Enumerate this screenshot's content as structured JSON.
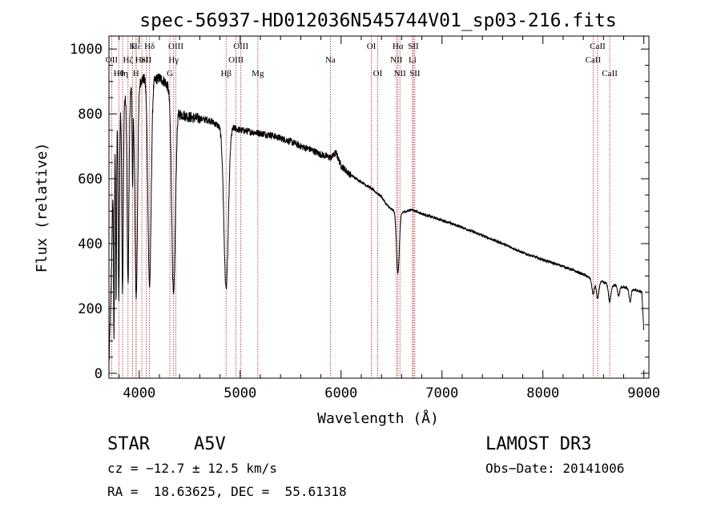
{
  "chart_data": {
    "type": "line",
    "title": "spec-56937-HD012036N545744V01_sp03-216.fits",
    "xlabel": "Wavelength (Å)",
    "ylabel": "Flux (relative)",
    "xlim": [
      3700,
      9050
    ],
    "ylim": [
      -15,
      1040
    ],
    "xticks": [
      4000,
      5000,
      6000,
      7000,
      8000,
      9000
    ],
    "yticks": [
      0,
      200,
      400,
      600,
      800,
      1000
    ],
    "grid": false,
    "line_color": "#000000",
    "marker_color": "#b22222",
    "lines": [
      {
        "name": "OII",
        "x": 3727,
        "row": 2
      },
      {
        "name": "Hθ",
        "x": 3798,
        "row": 3
      },
      {
        "name": "Hη",
        "x": 3835,
        "row": 3
      },
      {
        "name": "Hζ",
        "x": 3889,
        "row": 2
      },
      {
        "name": "Hε",
        "x": 3970,
        "row": 1
      },
      {
        "name": "K",
        "x": 3934,
        "row": 1
      },
      {
        "name": "H",
        "x": 3968,
        "row": 3
      },
      {
        "name": "HeI",
        "x": 4026,
        "row": 2
      },
      {
        "name": "SII",
        "x": 4070,
        "row": 2
      },
      {
        "name": "Hδ",
        "x": 4102,
        "row": 1
      },
      {
        "name": "G",
        "x": 4304,
        "row": 3
      },
      {
        "name": "Hγ",
        "x": 4341,
        "row": 2
      },
      {
        "name": "OIII",
        "x": 4363,
        "row": 1
      },
      {
        "name": "Hβ",
        "x": 4861,
        "row": 3
      },
      {
        "name": "OIII",
        "x": 4959,
        "row": 2
      },
      {
        "name": "OIII",
        "x": 5007,
        "row": 1
      },
      {
        "name": "Mg",
        "x": 5175,
        "row": 3
      },
      {
        "name": "Na",
        "x": 5894,
        "row": 2
      },
      {
        "name": "OI",
        "x": 6300,
        "row": 1
      },
      {
        "name": "OI",
        "x": 6363,
        "row": 3
      },
      {
        "name": "NII",
        "x": 6548,
        "row": 2
      },
      {
        "name": "Hα",
        "x": 6563,
        "row": 1
      },
      {
        "name": "NII",
        "x": 6583,
        "row": 3
      },
      {
        "name": "Li",
        "x": 6708,
        "row": 2
      },
      {
        "name": "SII",
        "x": 6716,
        "row": 1
      },
      {
        "name": "SII",
        "x": 6731,
        "row": 3
      },
      {
        "name": "CaII",
        "x": 8498,
        "row": 2
      },
      {
        "name": "CaII",
        "x": 8542,
        "row": 1
      },
      {
        "name": "CaII",
        "x": 8662,
        "row": 3
      }
    ],
    "continuum": [
      [
        3700,
        30
      ],
      [
        3720,
        250
      ],
      [
        3740,
        560
      ],
      [
        3760,
        700
      ],
      [
        3780,
        760
      ],
      [
        3800,
        800
      ],
      [
        3850,
        840
      ],
      [
        3900,
        870
      ],
      [
        3950,
        880
      ],
      [
        4000,
        900
      ],
      [
        4050,
        910
      ],
      [
        4100,
        910
      ],
      [
        4150,
        905
      ],
      [
        4200,
        910
      ],
      [
        4250,
        900
      ],
      [
        4300,
        880
      ],
      [
        4350,
        850
      ],
      [
        4400,
        800
      ],
      [
        4500,
        790
      ],
      [
        4600,
        785
      ],
      [
        4700,
        780
      ],
      [
        4800,
        760
      ],
      [
        4850,
        740
      ],
      [
        4900,
        760
      ],
      [
        5000,
        750
      ],
      [
        5100,
        745
      ],
      [
        5200,
        740
      ],
      [
        5300,
        735
      ],
      [
        5400,
        725
      ],
      [
        5500,
        715
      ],
      [
        5600,
        700
      ],
      [
        5700,
        690
      ],
      [
        5800,
        675
      ],
      [
        5900,
        665
      ],
      [
        5950,
        680
      ],
      [
        6000,
        640
      ],
      [
        6100,
        610
      ],
      [
        6200,
        590
      ],
      [
        6300,
        570
      ],
      [
        6400,
        545
      ],
      [
        6450,
        520
      ],
      [
        6500,
        505
      ],
      [
        6600,
        495
      ],
      [
        6700,
        505
      ],
      [
        6800,
        492
      ],
      [
        7000,
        472
      ],
      [
        7200,
        450
      ],
      [
        7400,
        425
      ],
      [
        7600,
        400
      ],
      [
        7800,
        372
      ],
      [
        8000,
        350
      ],
      [
        8200,
        330
      ],
      [
        8400,
        305
      ],
      [
        8500,
        288
      ],
      [
        8600,
        280
      ],
      [
        8700,
        272
      ],
      [
        8800,
        265
      ],
      [
        8900,
        258
      ],
      [
        8980,
        250
      ],
      [
        9000,
        130
      ]
    ],
    "absorption": [
      {
        "center": 3750,
        "depth": 520,
        "width": 4
      },
      {
        "center": 3771,
        "depth": 520,
        "width": 4
      },
      {
        "center": 3798,
        "depth": 560,
        "width": 6
      },
      {
        "center": 3835,
        "depth": 580,
        "width": 7
      },
      {
        "center": 3889,
        "depth": 590,
        "width": 9
      },
      {
        "center": 3934,
        "depth": 300,
        "width": 4
      },
      {
        "center": 3970,
        "depth": 650,
        "width": 13
      },
      {
        "center": 4102,
        "depth": 640,
        "width": 16
      },
      {
        "center": 4340,
        "depth": 620,
        "width": 18
      },
      {
        "center": 4861,
        "depth": 480,
        "width": 22
      },
      {
        "center": 6563,
        "depth": 190,
        "width": 14
      },
      {
        "center": 8498,
        "depth": 45,
        "width": 12
      },
      {
        "center": 8542,
        "depth": 55,
        "width": 12
      },
      {
        "center": 8662,
        "depth": 55,
        "width": 12
      },
      {
        "center": 8750,
        "depth": 30,
        "width": 10
      },
      {
        "center": 8863,
        "depth": 40,
        "width": 10
      }
    ]
  },
  "footer": {
    "object_class": "STAR",
    "subclass": "A5V",
    "survey": "LAMOST DR3",
    "cz": "cz = −12.7 ± 12.5 km/s",
    "obs_date": "Obs−Date: 20141006",
    "coords": "RA =  18.63625, DEC =  55.61318"
  }
}
